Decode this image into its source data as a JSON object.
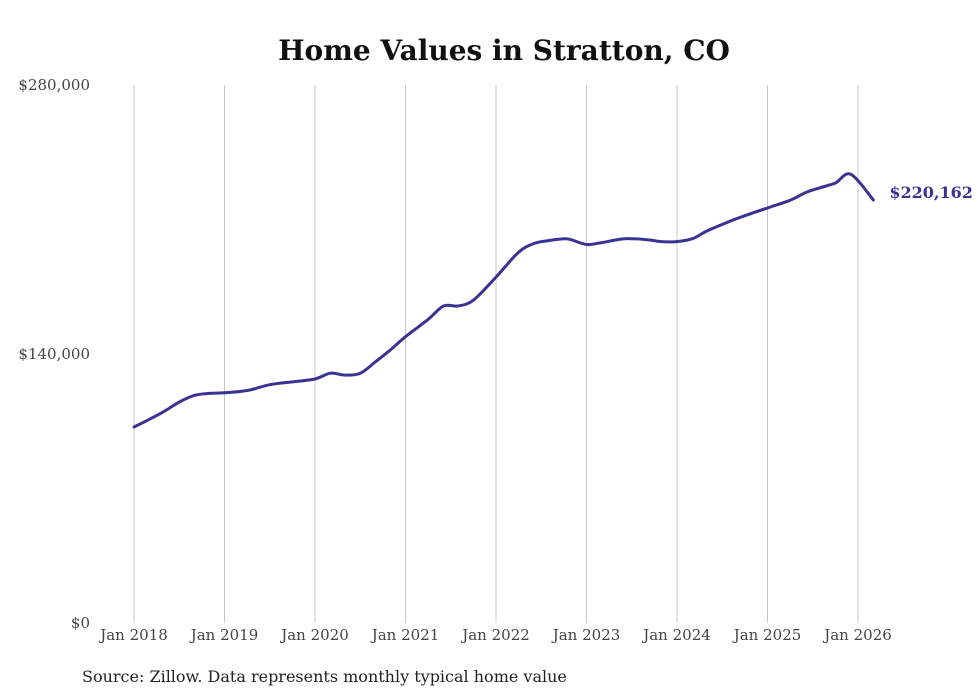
{
  "chart_data": {
    "type": "line",
    "title": "Home Values in Stratton, CO",
    "xlabel": "",
    "ylabel": "",
    "x_ticks": [
      "Jan 2018",
      "Jan 2019",
      "Jan 2020",
      "Jan 2021",
      "Jan 2022",
      "Jan 2023",
      "Jan 2024",
      "Jan 2025",
      "Jan 2026"
    ],
    "y_ticks": [
      "$0",
      "$140,000",
      "$280,000"
    ],
    "ylim": [
      0,
      280000
    ],
    "xlim": [
      2018.0,
      2026.75
    ],
    "grid": "vertical",
    "series": [
      {
        "name": "Typical home value",
        "color": "#3b3393",
        "x": [
          2018.0,
          2018.17,
          2018.33,
          2018.5,
          2018.67,
          2018.83,
          2019.0,
          2019.25,
          2019.5,
          2019.75,
          2020.0,
          2020.17,
          2020.33,
          2020.5,
          2020.67,
          2020.83,
          2021.0,
          2021.25,
          2021.42,
          2021.58,
          2021.75,
          2022.0,
          2022.25,
          2022.42,
          2022.58,
          2022.75,
          2022.83,
          2023.0,
          2023.17,
          2023.42,
          2023.67,
          2023.83,
          2024.0,
          2024.17,
          2024.33,
          2024.58,
          2024.75,
          2025.0,
          2025.25,
          2025.42,
          2025.58,
          2025.75,
          2025.92,
          2026.17
        ],
        "values": [
          102000,
          106000,
          110000,
          115000,
          118500,
          119500,
          119800,
          121000,
          124000,
          125500,
          127000,
          130000,
          129000,
          130000,
          136000,
          142000,
          149000,
          158000,
          165000,
          165000,
          168000,
          180000,
          193000,
          197500,
          199000,
          200000,
          199500,
          197000,
          198000,
          200000,
          199500,
          198500,
          198500,
          200000,
          204000,
          209000,
          212000,
          216000,
          220000,
          224000,
          226500,
          229000,
          233500,
          220162
        ]
      }
    ],
    "end_label": "$220,162"
  },
  "source_note": "Source: Zillow. Data represents monthly typical home value"
}
